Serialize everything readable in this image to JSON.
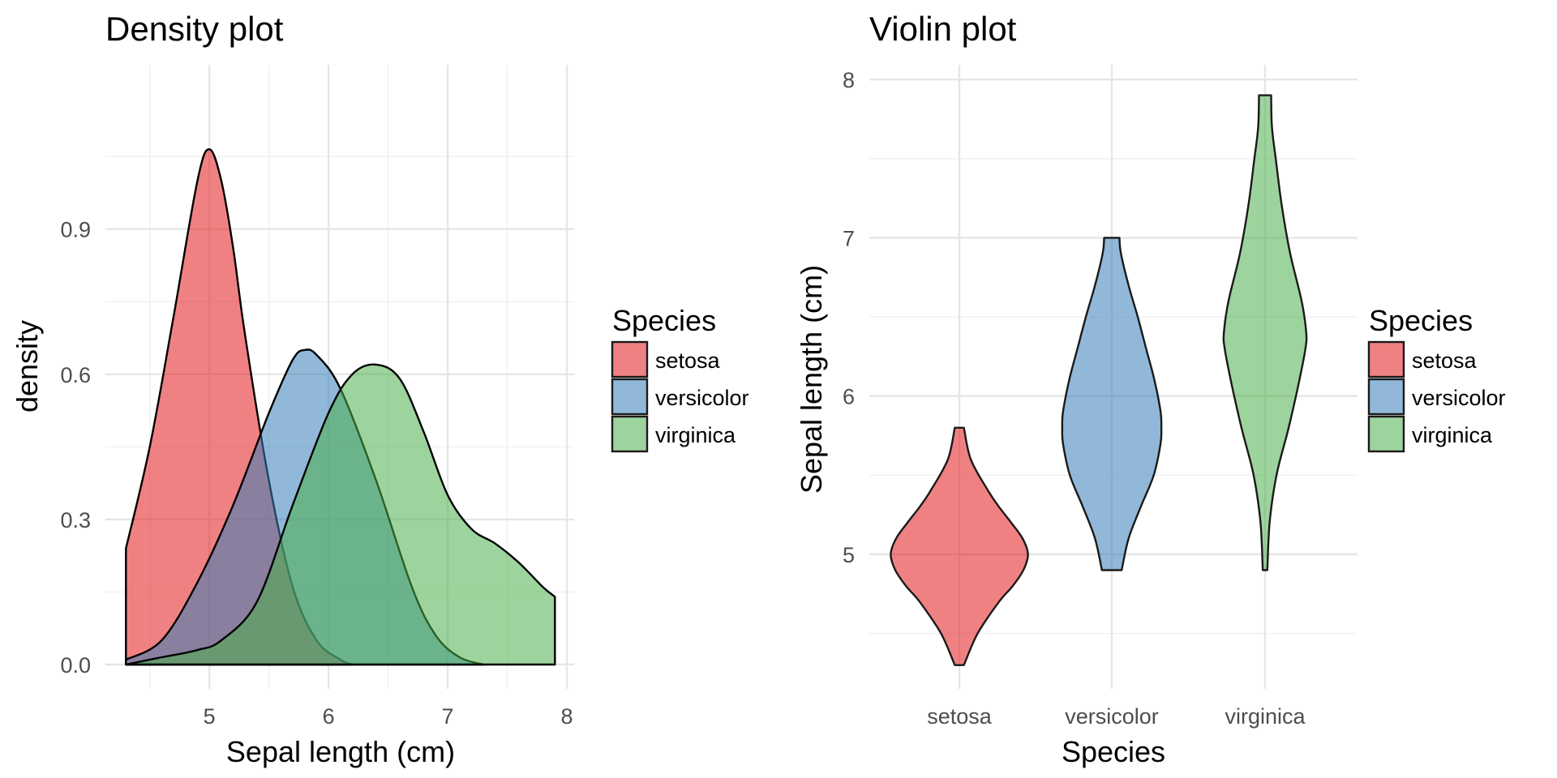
{
  "chart_data": [
    {
      "type": "area",
      "title": "Density plot",
      "xlabel": "Sepal length (cm)",
      "ylabel": "density",
      "xlim": [
        4.3,
        7.9
      ],
      "ylim": [
        0,
        1.1
      ],
      "xticks": [
        "5",
        "6",
        "7",
        "8"
      ],
      "yticks": [
        "0.0",
        "0.3",
        "0.6",
        "0.9"
      ],
      "grid": true,
      "legend": {
        "title": "Species",
        "position": "right"
      },
      "series": [
        {
          "name": "setosa",
          "color": "#e41a1c",
          "x": [
            4.3,
            4.5,
            4.7,
            4.9,
            5.0,
            5.1,
            5.2,
            5.3,
            5.5,
            5.7,
            5.9,
            6.1,
            6.2
          ],
          "y": [
            0.24,
            0.45,
            0.72,
            1.0,
            1.065,
            1.0,
            0.86,
            0.68,
            0.38,
            0.16,
            0.05,
            0.01,
            0.0
          ]
        },
        {
          "name": "versicolor",
          "color": "#377eb8",
          "x": [
            4.3,
            4.6,
            4.9,
            5.2,
            5.5,
            5.7,
            5.8,
            5.9,
            6.1,
            6.4,
            6.7,
            6.9,
            7.1,
            7.3
          ],
          "y": [
            0.01,
            0.05,
            0.17,
            0.33,
            0.52,
            0.63,
            0.65,
            0.64,
            0.57,
            0.38,
            0.16,
            0.06,
            0.015,
            0.0
          ]
        },
        {
          "name": "virginica",
          "color": "#4daf4a",
          "x": [
            4.3,
            4.6,
            4.9,
            5.1,
            5.4,
            5.7,
            6.0,
            6.2,
            6.4,
            6.6,
            6.8,
            7.0,
            7.2,
            7.4,
            7.6,
            7.8,
            7.9
          ],
          "y": [
            0.0,
            0.015,
            0.03,
            0.05,
            0.13,
            0.33,
            0.52,
            0.6,
            0.62,
            0.59,
            0.48,
            0.35,
            0.28,
            0.25,
            0.21,
            0.16,
            0.14
          ]
        }
      ]
    },
    {
      "type": "violin",
      "title": "Violin plot",
      "xlabel": "Species",
      "ylabel": "Sepal length (cm)",
      "categories": [
        "setosa",
        "versicolor",
        "virginica"
      ],
      "ylim": [
        4.3,
        7.9
      ],
      "yticks": [
        "5",
        "6",
        "7",
        "8"
      ],
      "grid": true,
      "legend": {
        "title": "Species",
        "position": "right"
      },
      "series": [
        {
          "name": "setosa",
          "color": "#e41a1c",
          "y": [
            4.3,
            4.5,
            4.7,
            4.8,
            4.9,
            5.0,
            5.1,
            5.2,
            5.3,
            5.4,
            5.6,
            5.8
          ],
          "halfwidth": [
            0.06,
            0.24,
            0.52,
            0.7,
            0.84,
            0.9,
            0.83,
            0.68,
            0.52,
            0.38,
            0.15,
            0.06
          ]
        },
        {
          "name": "versicolor",
          "color": "#377eb8",
          "y": [
            4.9,
            5.1,
            5.3,
            5.5,
            5.7,
            5.8,
            5.9,
            6.1,
            6.3,
            6.5,
            6.7,
            6.9,
            7.0
          ],
          "halfwidth": [
            0.13,
            0.22,
            0.38,
            0.55,
            0.64,
            0.65,
            0.64,
            0.56,
            0.45,
            0.34,
            0.22,
            0.12,
            0.1
          ]
        },
        {
          "name": "virginica",
          "color": "#4daf4a",
          "y": [
            4.9,
            5.2,
            5.5,
            5.8,
            6.1,
            6.3,
            6.4,
            6.6,
            6.9,
            7.2,
            7.5,
            7.7,
            7.9
          ],
          "halfwidth": [
            0.03,
            0.06,
            0.15,
            0.31,
            0.45,
            0.53,
            0.54,
            0.48,
            0.33,
            0.22,
            0.14,
            0.09,
            0.08
          ]
        }
      ]
    }
  ]
}
